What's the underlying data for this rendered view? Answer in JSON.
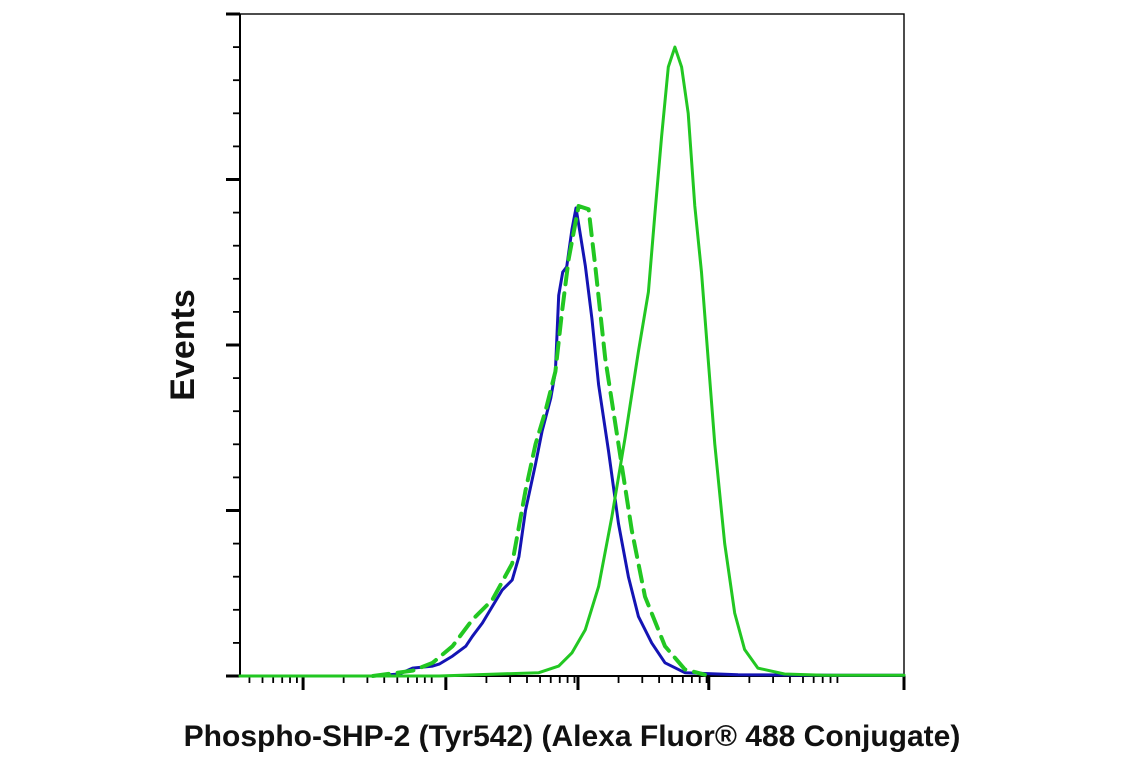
{
  "chart_data": {
    "type": "line",
    "title": "",
    "xlabel": "Phospho-SHP-2 (Tyr542) (Alexa Fluor® 488 Conjugate)",
    "ylabel": "Events",
    "x_scale": "log",
    "xlim": [
      0,
      100
    ],
    "ylim": [
      0,
      100
    ],
    "grid": false,
    "legend": "none",
    "series": [
      {
        "color": "#1414b4",
        "dash": "solid",
        "x": [
          20,
          24,
          26,
          29,
          30,
          32,
          34,
          35,
          36.5,
          38,
          39.5,
          41,
          42,
          43,
          44.5,
          45.5,
          46.8,
          47.5,
          48,
          48.6,
          49.2,
          50,
          50.6,
          51.2,
          52,
          53,
          54,
          55.5,
          57,
          58.5,
          60,
          62,
          64,
          67,
          75,
          90,
          100
        ],
        "y": [
          0,
          0.3,
          1.2,
          1.5,
          1.8,
          3.0,
          4.5,
          6.0,
          8.0,
          10.5,
          13.0,
          14.5,
          18.0,
          25.0,
          32.0,
          37.0,
          42.0,
          46.0,
          57.5,
          61.0,
          61.8,
          67.5,
          70.7,
          67.0,
          62.0,
          54.0,
          44.0,
          34.0,
          23.0,
          15.0,
          9.0,
          5.0,
          2.0,
          0.5,
          0.2,
          0.1,
          0.1
        ]
      },
      {
        "color": "#22c722",
        "dash": "dashed",
        "x": [
          20,
          26,
          29,
          32,
          35,
          38,
          41,
          43,
          44.5,
          46,
          47.5,
          48.5,
          49.5,
          51,
          52.5,
          53.5,
          55,
          57,
          59,
          61,
          64,
          67,
          70
        ],
        "y": [
          0,
          0.8,
          2.0,
          4.5,
          8.5,
          11.5,
          17.0,
          28.0,
          35.0,
          40.0,
          46.0,
          55.0,
          63.0,
          71.0,
          70.5,
          62.0,
          48.0,
          35.0,
          22.0,
          12.0,
          4.5,
          1.0,
          0.2
        ]
      },
      {
        "color": "#22c722",
        "dash": "solid",
        "x": [
          0,
          30,
          45,
          48,
          50,
          52,
          54,
          56,
          58,
          60,
          61.5,
          62.5,
          63.5,
          64.5,
          65.5,
          66.5,
          67.5,
          68.5,
          69.5,
          70.5,
          71.5,
          73,
          74.5,
          76,
          78,
          82,
          88,
          95,
          100
        ],
        "y": [
          0,
          0,
          0.5,
          1.5,
          3.5,
          7.0,
          13.5,
          24.0,
          36.0,
          49.0,
          58.0,
          70.0,
          81.5,
          92.0,
          95.0,
          92.0,
          85.0,
          71.0,
          61.0,
          48.0,
          35.0,
          20.0,
          9.5,
          4.0,
          1.2,
          0.3,
          0.1,
          0.1,
          0.1
        ]
      }
    ]
  }
}
